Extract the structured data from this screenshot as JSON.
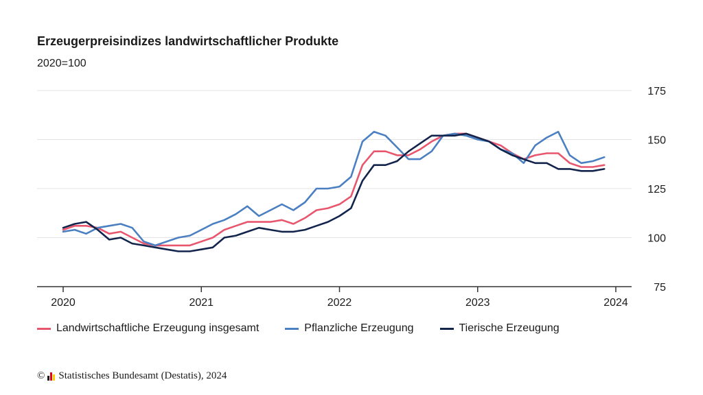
{
  "chart_data": {
    "type": "line",
    "title": "Erzeugerpreisindizes landwirtschaftlicher Produkte",
    "subtitle": "2020=100",
    "ylim": [
      75,
      175
    ],
    "yticks": [
      75,
      100,
      125,
      150,
      175
    ],
    "xlim": [
      2020.0,
      2024.0
    ],
    "xticks": [
      "2020",
      "2021",
      "2022",
      "2023",
      "2024"
    ],
    "grid": true,
    "legend_position": "bottom",
    "x": [
      2020.0,
      2020.0833,
      2020.1667,
      2020.25,
      2020.3333,
      2020.4167,
      2020.5,
      2020.5833,
      2020.6667,
      2020.75,
      2020.8333,
      2020.9167,
      2021.0,
      2021.0833,
      2021.1667,
      2021.25,
      2021.3333,
      2021.4167,
      2021.5,
      2021.5833,
      2021.6667,
      2021.75,
      2021.8333,
      2021.9167,
      2022.0,
      2022.0833,
      2022.1667,
      2022.25,
      2022.3333,
      2022.4167,
      2022.5,
      2022.5833,
      2022.6667,
      2022.75,
      2022.8333,
      2022.9167,
      2023.0,
      2023.0833,
      2023.1667,
      2023.25,
      2023.3333,
      2023.4167,
      2023.5,
      2023.5833,
      2023.6667,
      2023.75,
      2023.8333,
      2023.9167
    ],
    "series": [
      {
        "name": "Landwirtschaftliche Erzeugung insgesamt",
        "color": "#e8566e",
        "values": [
          104,
          106,
          106,
          105,
          102,
          103,
          100,
          97,
          96,
          96,
          96,
          96,
          98,
          100,
          104,
          106,
          108,
          108,
          108,
          109,
          107,
          110,
          114,
          115,
          117,
          121,
          137,
          144,
          144,
          142,
          142,
          145,
          149,
          152,
          153,
          153,
          151,
          149,
          147,
          143,
          140,
          142,
          143,
          143,
          138,
          136,
          136,
          137
        ]
      },
      {
        "name": "Pflanzliche Erzeugung",
        "color": "#4a7fc1",
        "values": [
          103,
          104,
          102,
          105,
          106,
          107,
          105,
          98,
          96,
          98,
          100,
          101,
          104,
          107,
          109,
          112,
          116,
          111,
          114,
          117,
          114,
          118,
          125,
          125,
          126,
          131,
          149,
          154,
          152,
          146,
          140,
          140,
          144,
          152,
          153,
          152,
          150,
          149,
          145,
          143,
          138,
          147,
          151,
          154,
          142,
          138,
          139,
          141
        ]
      },
      {
        "name": "Tierische Erzeugung",
        "color": "#12244c",
        "values": [
          105,
          107,
          108,
          104,
          99,
          100,
          97,
          96,
          95,
          94,
          93,
          93,
          94,
          95,
          100,
          101,
          103,
          105,
          104,
          103,
          103,
          104,
          106,
          108,
          111,
          115,
          129,
          137,
          137,
          139,
          144,
          148,
          152,
          152,
          152,
          153,
          151,
          149,
          145,
          142,
          140,
          138,
          138,
          135,
          135,
          134,
          134,
          135
        ]
      }
    ]
  },
  "source": {
    "copyright": "©",
    "text": "Statistisches Bundesamt (Destatis), 2024",
    "logo_colors": [
      "#1a1a1a",
      "#e2001a",
      "#ffcc00"
    ]
  }
}
